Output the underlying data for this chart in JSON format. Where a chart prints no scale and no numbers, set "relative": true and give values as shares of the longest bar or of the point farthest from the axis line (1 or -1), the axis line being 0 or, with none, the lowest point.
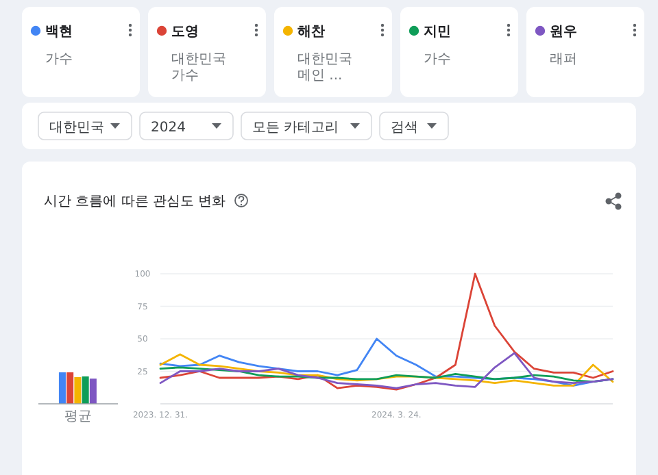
{
  "chart_data": [
    {
      "type": "other",
      "annotations": [
        "가수",
        "대한민국 가수",
        "대한민국 메인 ...",
        "가수",
        "래퍼",
        "대한민국",
        "2024",
        "모든 카테고리",
        "검색"
      ]
    },
    {
      "type": "bar",
      "relative": true,
      "categories": [
        "평균"
      ],
      "series": [
        {
          "color": "#4285f4",
          "values": [
            1
          ]
        },
        {
          "color": "#db4437",
          "values": [
            1
          ]
        },
        {
          "color": "#f4b400",
          "values": [
            0.85
          ]
        },
        {
          "color": "#0f9d58",
          "values": [
            0.87
          ]
        },
        {
          "color": "#7e57c2",
          "values": [
            0.8
          ]
        }
      ]
    },
    {
      "type": "line",
      "title": "시간 흐름에 따른 관심도 변화",
      "legend": "top",
      "grid": "y",
      "x": [
        "2023-12-31",
        "2024-01-07",
        "2024-01-14",
        "2024-01-21",
        "2024-01-28",
        "2024-02-04",
        "2024-02-11",
        "2024-02-18",
        "2024-02-25",
        "2024-03-03",
        "2024-03-10",
        "2024-03-17",
        "2024-03-24",
        "2024-03-31",
        "2024-04-07",
        "2024-04-14",
        "2024-04-21",
        "2024-04-28",
        "2024-05-05",
        "2024-05-12",
        "2024-05-19",
        "2024-05-26",
        "2024-06-02",
        "2024-06-09"
      ],
      "xlim": [
        "2023-12-31",
        "2024-06-09"
      ],
      "xticks": [
        {
          "value": "2023-12-31",
          "label": "2023. 12. 31."
        },
        {
          "value": "2024-03-24",
          "label": "2024. 3. 24."
        }
      ],
      "ylim": [
        0,
        100
      ],
      "yticks": [
        25,
        50,
        75,
        100
      ],
      "series": [
        {
          "name": "백현",
          "color": "#4285f4",
          "values": [
            31,
            29,
            30,
            37,
            32,
            29,
            27,
            25,
            25,
            22,
            26,
            50,
            37,
            30,
            21,
            21,
            20,
            19,
            20,
            19,
            17,
            14,
            17,
            19
          ]
        },
        {
          "name": "도영",
          "color": "#db4437",
          "values": [
            20,
            22,
            25,
            20,
            20,
            20,
            21,
            19,
            22,
            12,
            14,
            13,
            11,
            15,
            20,
            30,
            100,
            60,
            40,
            27,
            24,
            24,
            20,
            25
          ]
        },
        {
          "name": "해찬",
          "color": "#f4b400",
          "values": [
            30,
            38,
            30,
            29,
            27,
            25,
            24,
            22,
            22,
            19,
            18,
            19,
            21,
            21,
            20,
            19,
            18,
            16,
            18,
            16,
            14,
            14,
            30,
            17
          ]
        },
        {
          "name": "지민",
          "color": "#0f9d58",
          "values": [
            27,
            28,
            27,
            26,
            25,
            22,
            21,
            21,
            20,
            20,
            19,
            19,
            22,
            21,
            20,
            23,
            21,
            19,
            20,
            22,
            21,
            18,
            17,
            19
          ]
        },
        {
          "name": "원우",
          "color": "#7e57c2",
          "values": [
            16,
            25,
            25,
            27,
            25,
            25,
            27,
            22,
            20,
            16,
            15,
            14,
            12,
            15,
            16,
            14,
            13,
            28,
            39,
            20,
            17,
            16,
            17,
            19
          ]
        }
      ]
    }
  ]
}
